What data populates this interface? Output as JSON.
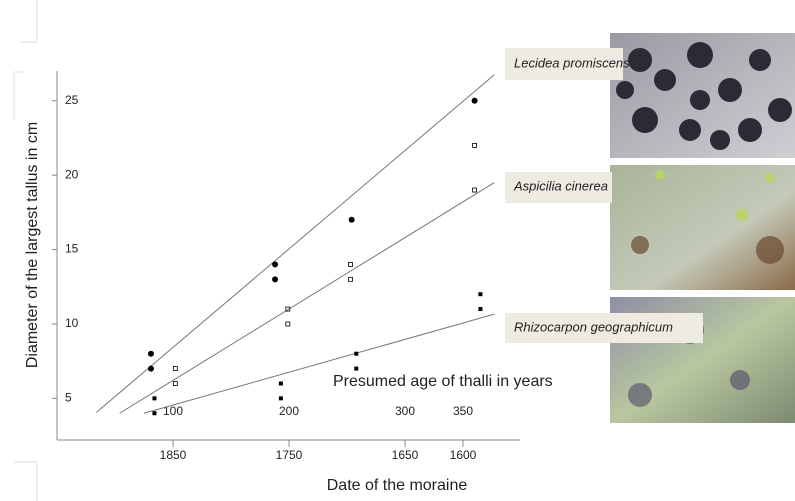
{
  "chart_data": {
    "type": "scatter",
    "y_label": "Diameter of the largest tallus in cm",
    "x_label": "Date of the moraine",
    "secondary_x_label": "Presumed age of thalli in years",
    "xlim": [
      1950,
      1550
    ],
    "ylim": [
      2,
      27
    ],
    "xticks": [
      1850,
      1750,
      1650,
      1600
    ],
    "yticks": [
      5,
      10,
      15,
      20,
      25
    ],
    "age_ticks": [
      {
        "value": 1850,
        "label": "100"
      },
      {
        "value": 1750,
        "label": "200"
      },
      {
        "value": 1650,
        "label": "300"
      },
      {
        "value": 1600,
        "label": "350"
      }
    ],
    "series": [
      {
        "name": "Lecidea promiscens",
        "color": "#000000",
        "marker": "circle",
        "x": [
          1869,
          1869,
          1762,
          1762,
          1696,
          1590
        ],
        "values": [
          8,
          7,
          14,
          13,
          17,
          25
        ],
        "fit_x": [
          1916,
          1573
        ],
        "fit_y": [
          4.06,
          26.75
        ]
      },
      {
        "name": "Aspicilia cinerea",
        "color": "#000000",
        "marker": "square-open",
        "x": [
          1848,
          1848,
          1751,
          1751,
          1697,
          1697,
          1590,
          1590
        ],
        "values": [
          7,
          6,
          11,
          10,
          14,
          13,
          22,
          19
        ],
        "fit_x": [
          1896,
          1573
        ],
        "fit_y": [
          4.0,
          19.5
        ]
      },
      {
        "name": "Rhizocarpon geographicum",
        "color": "#000000",
        "marker": "square",
        "x": [
          1866,
          1866,
          1757,
          1757,
          1692,
          1692,
          1585,
          1585
        ],
        "values": [
          5,
          4,
          6,
          5,
          8,
          7,
          12,
          11
        ],
        "fit_x": [
          1875,
          1573
        ],
        "fit_y": [
          4.0,
          10.66
        ]
      }
    ]
  }
}
